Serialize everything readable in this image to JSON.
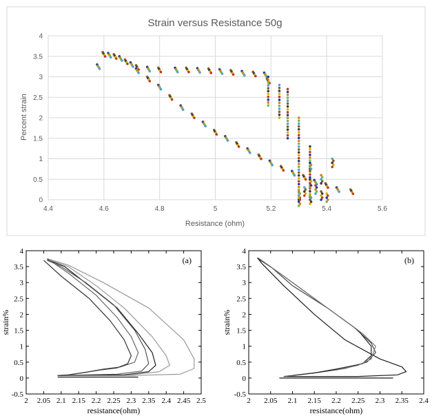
{
  "chart_data": [
    {
      "type": "scatter",
      "title": "Strain versus Resistance 50g",
      "xlabel": "Resistance (ohm)",
      "ylabel": "Percent strain",
      "xlim": [
        4.4,
        5.6
      ],
      "ylim": [
        0,
        4
      ],
      "xticks": [
        "4.4",
        "4.6",
        "4.8",
        "5",
        "5.2",
        "5.4",
        "5.6"
      ],
      "yticks": [
        "0",
        "0.5",
        "1",
        "1.5",
        "2",
        "2.5",
        "3",
        "3.5",
        "4"
      ],
      "grid": true,
      "marker_colors": [
        "#1f3f8f",
        "#e07b1a",
        "#7ab648",
        "#4aa3d8",
        "#8a5a2b",
        "#3b3b3b",
        "#d4b000",
        "#c0392b"
      ],
      "upper_branch": {
        "x": [
          4.58,
          4.6,
          4.62,
          4.64,
          4.66,
          4.68,
          4.7,
          4.72,
          4.76,
          4.8,
          4.86,
          4.9,
          4.94,
          4.98,
          5.02,
          5.06,
          5.1,
          5.14,
          5.18,
          5.19
        ],
        "y": [
          3.3,
          3.6,
          3.58,
          3.55,
          3.5,
          3.42,
          3.35,
          3.28,
          3.24,
          3.22,
          3.22,
          3.22,
          3.21,
          3.2,
          3.18,
          3.16,
          3.14,
          3.12,
          3.1,
          2.95
        ]
      },
      "vertical_drops": {
        "x": [
          5.19,
          5.23,
          5.26,
          5.3,
          5.34
        ],
        "y_top": [
          3.0,
          2.8,
          2.7,
          2.0,
          1.3
        ],
        "y_bottom": [
          2.3,
          2.0,
          1.5,
          0.1,
          0.0
        ]
      },
      "lower_branch": {
        "x": [
          4.72,
          4.76,
          4.8,
          4.84,
          4.88,
          4.92,
          4.96,
          5.0,
          5.04,
          5.08,
          5.12,
          5.16,
          5.2,
          5.24,
          5.28,
          5.32,
          5.36,
          5.4,
          5.44,
          5.49
        ],
        "y": [
          3.2,
          3.0,
          2.8,
          2.55,
          2.3,
          2.1,
          1.9,
          1.7,
          1.55,
          1.4,
          1.25,
          1.1,
          0.95,
          0.82,
          0.7,
          0.6,
          0.48,
          0.4,
          0.3,
          0.25
        ]
      },
      "cluster_bottom": {
        "x": [
          5.3,
          5.3,
          5.32,
          5.34,
          5.34,
          5.34,
          5.36,
          5.38,
          5.38,
          5.4,
          5.42
        ],
        "y": [
          0.2,
          0.05,
          0.3,
          0.9,
          0.5,
          0.1,
          0.35,
          0.2,
          0.6,
          0.15,
          1.0
        ]
      }
    },
    {
      "type": "line",
      "panel_label": "(a)",
      "xlabel": "resistance(ohm)",
      "ylabel": "strain%",
      "xlim": [
        2,
        2.5
      ],
      "ylim": [
        -0.5,
        4
      ],
      "xticks": [
        "2",
        "2.05",
        "2.1",
        "2.15",
        "2.2",
        "2.25",
        "2.3",
        "2.35",
        "2.4",
        "2.45",
        "2.5"
      ],
      "yticks": [
        "-0.5",
        "0",
        "0.5",
        "1",
        "1.5",
        "2",
        "2.5",
        "3",
        "3.5",
        "4"
      ],
      "loops": [
        {
          "color": "#999999",
          "x": [
            2.09,
            2.3,
            2.44,
            2.48,
            2.48,
            2.45,
            2.35,
            2.22,
            2.12,
            2.06,
            2.06
          ],
          "y": [
            0.08,
            0.08,
            0.12,
            0.3,
            0.6,
            1.2,
            2.2,
            3.0,
            3.55,
            3.75,
            3.75
          ]
        },
        {
          "color": "#999999",
          "x": [
            2.09,
            2.3,
            2.38,
            2.41,
            2.4,
            2.36,
            2.28,
            2.2,
            2.12,
            2.06
          ],
          "y": [
            0.08,
            0.1,
            0.2,
            0.4,
            0.7,
            1.3,
            2.2,
            2.9,
            3.5,
            3.75
          ]
        },
        {
          "color": "#1a1a1a",
          "x": [
            2.09,
            2.28,
            2.35,
            2.37,
            2.36,
            2.32,
            2.26,
            2.18,
            2.11,
            2.06
          ],
          "y": [
            0.08,
            0.1,
            0.2,
            0.4,
            0.8,
            1.4,
            2.2,
            2.9,
            3.5,
            3.72
          ]
        },
        {
          "color": "#555555",
          "x": [
            2.09,
            2.26,
            2.33,
            2.35,
            2.34,
            2.31,
            2.25,
            2.17,
            2.1,
            2.06
          ],
          "y": [
            0.08,
            0.12,
            0.22,
            0.45,
            0.9,
            1.5,
            2.3,
            3.0,
            3.5,
            3.7
          ]
        }
      ],
      "return_paths": [
        {
          "color": "#666666",
          "x": [
            2.06,
            2.12,
            2.2,
            2.26,
            2.3,
            2.32,
            2.31,
            2.27,
            2.22,
            2.18,
            2.12,
            2.09
          ],
          "y": [
            3.75,
            3.3,
            2.6,
            1.9,
            1.3,
            0.8,
            0.5,
            0.35,
            0.28,
            0.2,
            0.1,
            0.08
          ]
        },
        {
          "color": "#333333",
          "x": [
            2.05,
            2.1,
            2.18,
            2.24,
            2.28,
            2.3,
            2.29,
            2.26,
            2.21,
            2.17,
            2.12,
            2.09
          ],
          "y": [
            3.7,
            3.2,
            2.5,
            1.8,
            1.2,
            0.7,
            0.45,
            0.32,
            0.25,
            0.18,
            0.1,
            0.08
          ]
        }
      ],
      "baseline": {
        "color": "#1a1a1a",
        "x": [
          2.09,
          2.32
        ],
        "y": [
          0.03,
          0.03
        ]
      }
    },
    {
      "type": "line",
      "panel_label": "(b)",
      "xlabel": "resistance(ohm)",
      "ylabel": "strain%",
      "xlim": [
        2,
        2.4
      ],
      "ylim": [
        -0.5,
        4
      ],
      "xticks": [
        "2",
        "2.05",
        "2.1",
        "2.15",
        "2.2",
        "2.25",
        "2.3",
        "2.35",
        "2.4"
      ],
      "yticks": [
        "-0.5",
        "0",
        "0.5",
        "1",
        "1.5",
        "2",
        "2.5",
        "3",
        "3.5",
        "4"
      ],
      "loops": [
        {
          "color": "#1a1a1a",
          "x": [
            2.08,
            2.25,
            2.34,
            2.36,
            2.35,
            2.3,
            2.22,
            2.15,
            2.08,
            2.03,
            2.02
          ],
          "y": [
            0.05,
            0.05,
            0.1,
            0.2,
            0.35,
            0.6,
            1.2,
            2.0,
            2.9,
            3.6,
            3.78
          ]
        },
        {
          "color": "#444444",
          "x": [
            2.02,
            2.05,
            2.1,
            2.18,
            2.24,
            2.28,
            2.29,
            2.27,
            2.22,
            2.16,
            2.1,
            2.08
          ],
          "y": [
            3.78,
            3.5,
            2.9,
            2.2,
            1.6,
            1.1,
            0.8,
            0.5,
            0.3,
            0.18,
            0.08,
            0.05
          ]
        },
        {
          "color": "#222222",
          "x": [
            2.02,
            2.06,
            2.12,
            2.19,
            2.25,
            2.28,
            2.28,
            2.26,
            2.2,
            2.15,
            2.1
          ],
          "y": [
            3.76,
            3.4,
            2.8,
            2.1,
            1.5,
            1.0,
            0.7,
            0.45,
            0.28,
            0.16,
            0.08
          ]
        },
        {
          "color": "#777777",
          "x": [
            2.025,
            2.07,
            2.13,
            2.2,
            2.26,
            2.29,
            2.28,
            2.25,
            2.2
          ],
          "y": [
            3.74,
            3.3,
            2.7,
            2.0,
            1.4,
            1.0,
            0.6,
            0.4,
            0.25
          ]
        }
      ],
      "return_paths": [],
      "baseline": {
        "color": "#1a1a1a",
        "x": [
          2.07,
          2.33
        ],
        "y": [
          0.0,
          0.0
        ]
      }
    }
  ]
}
